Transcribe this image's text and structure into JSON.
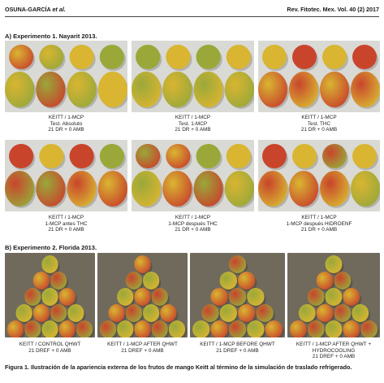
{
  "header": {
    "author": "OSUNA-GARCÍA",
    "author_suffix": "et al.",
    "journal": "Rev. Fitotec. Mex. Vol. 40 (2) 2017"
  },
  "section_a": {
    "title": "A) Experimento 1. Nayarit 2013.",
    "panels": [
      {
        "line1": "KEITT / 1-MCP",
        "line2": "Test. Absoluto",
        "line3": "21 DR + 0 AMB"
      },
      {
        "line1": "KEITT / 1-MCP",
        "line2": "Test. 1-MCP",
        "line3": "21 DR + 0 AMB"
      },
      {
        "line1": "KEITT / 1-MCP",
        "line2": "Test. THC",
        "line3": "21 DR + 0 AMB"
      },
      {
        "line1": "KEITT / 1-MCP",
        "line2": "1-MCP antes THC",
        "line3": "21 DR + 0 AMB"
      },
      {
        "line1": "KEITT / 1-MCP",
        "line2": "1-MCP después THC",
        "line3": "21 DR + 0 AMB"
      },
      {
        "line1": "KEITT / 1-MCP",
        "line2": "1-MCP después HIDROENF",
        "line3": "21 DR + 0 AMB"
      }
    ]
  },
  "section_b": {
    "title": "B) Experimento 2. Florida 2013.",
    "panels": [
      {
        "line1": "KEITT / CONTROL QHWT",
        "line2": "21 DREF + 0 AMB",
        "line3": ""
      },
      {
        "line1": "KEITT / 1-MCP AFTER QHWT",
        "line2": "21 DREF + 0 AMB",
        "line3": ""
      },
      {
        "line1": "KEITT / 1-MCP BEFORE QHWT",
        "line2": "21 DREF + 0 AMB",
        "line3": ""
      },
      {
        "line1": "KEITT / 1-MCP AFTER QHWT +",
        "line2": "HYDROCOOLING",
        "line3": "21 DREF + 0 AMB"
      }
    ]
  },
  "figure_caption": "Figura 1. Ilustración de la apariencia externa de los frutos de mango Keitt al término de la simulación de traslado refrigerado.",
  "colors": {
    "photo_bg_a": "#d9d9d6",
    "photo_bg_b": "#6f6a5c",
    "mango_green": "#9aa83a",
    "mango_yellow": "#d9b531",
    "mango_red": "#c8452c"
  }
}
